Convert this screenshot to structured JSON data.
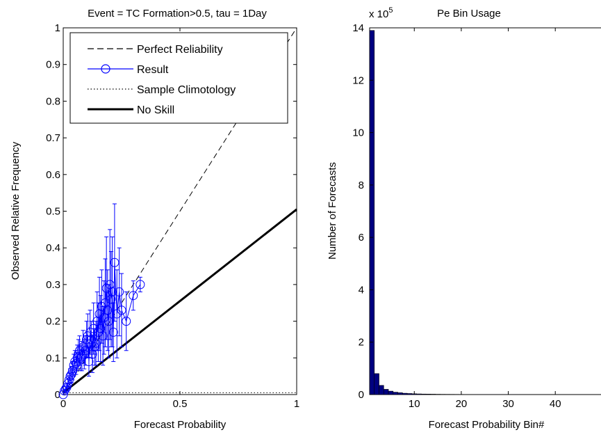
{
  "chart_data": [
    {
      "type": "scatter",
      "title": "Event = TC Formation>0.5,  tau = 1Day",
      "xlabel": "Forecast Probability",
      "ylabel": "Observed Relative Frequency",
      "xlim": [
        0,
        1
      ],
      "ylim": [
        0,
        1
      ],
      "x_ticks": [
        "0",
        "0.5",
        "1"
      ],
      "y_ticks": [
        "0",
        "0.1",
        "0.2",
        "0.3",
        "0.4",
        "0.5",
        "0.6",
        "0.7",
        "0.8",
        "0.9",
        "1"
      ],
      "legend_position": "top-left",
      "legend": [
        "Perfect Reliability",
        "Result",
        "Sample Climotology",
        "No Skill"
      ],
      "colors": {
        "result": "#0000ff",
        "no_skill": "#000000",
        "perfect": "#000000",
        "climatology": "#000000"
      },
      "perfect_reliability": [
        [
          0,
          0
        ],
        [
          1,
          1
        ]
      ],
      "no_skill": [
        [
          0,
          0.005
        ],
        [
          1,
          0.505
        ]
      ],
      "sample_climatology": 0.005,
      "series": [
        {
          "name": "Result",
          "x": [
            0.0,
            0.005,
            0.01,
            0.015,
            0.02,
            0.025,
            0.03,
            0.035,
            0.04,
            0.045,
            0.05,
            0.055,
            0.06,
            0.065,
            0.07,
            0.075,
            0.08,
            0.085,
            0.09,
            0.095,
            0.1,
            0.105,
            0.11,
            0.115,
            0.12,
            0.125,
            0.13,
            0.135,
            0.14,
            0.145,
            0.15,
            0.155,
            0.16,
            0.165,
            0.17,
            0.175,
            0.18,
            0.185,
            0.19,
            0.195,
            0.2,
            0.205,
            0.21,
            0.215,
            0.22,
            0.23,
            0.24,
            0.25,
            0.27,
            0.3,
            0.33
          ],
          "y": [
            0.0,
            0.01,
            0.015,
            0.02,
            0.03,
            0.04,
            0.05,
            0.055,
            0.065,
            0.08,
            0.09,
            0.085,
            0.1,
            0.11,
            0.12,
            0.1,
            0.105,
            0.13,
            0.11,
            0.12,
            0.15,
            0.16,
            0.09,
            0.17,
            0.15,
            0.11,
            0.18,
            0.13,
            0.14,
            0.2,
            0.17,
            0.22,
            0.18,
            0.24,
            0.16,
            0.21,
            0.25,
            0.29,
            0.23,
            0.2,
            0.3,
            0.26,
            0.28,
            0.17,
            0.36,
            0.22,
            0.28,
            0.23,
            0.2,
            0.27,
            0.3
          ],
          "error": [
            0.0,
            0.005,
            0.007,
            0.01,
            0.015,
            0.018,
            0.02,
            0.022,
            0.025,
            0.03,
            0.03,
            0.03,
            0.035,
            0.04,
            0.04,
            0.035,
            0.04,
            0.045,
            0.04,
            0.04,
            0.05,
            0.06,
            0.04,
            0.06,
            0.05,
            0.05,
            0.07,
            0.05,
            0.06,
            0.08,
            0.08,
            0.1,
            0.09,
            0.1,
            0.08,
            0.1,
            0.12,
            0.14,
            0.11,
            0.1,
            0.15,
            0.13,
            0.15,
            0.08,
            0.16,
            0.12,
            0.12,
            0.1,
            0.08,
            0.04,
            0.02
          ]
        }
      ]
    },
    {
      "type": "bar",
      "title": "Pe Bin Usage",
      "xlabel": "Forecast Probability Bin#",
      "ylabel": "Number of Forecasts",
      "y_multiplier": "x 10",
      "y_exponent": "5",
      "xlim": [
        0.5,
        51.5
      ],
      "ylim": [
        0,
        14
      ],
      "x_ticks": [
        "10",
        "20",
        "30",
        "40"
      ],
      "y_ticks": [
        "0",
        "2",
        "4",
        "6",
        "8",
        "10",
        "12",
        "14"
      ],
      "colors": {
        "bar": "#000080"
      },
      "categories": [
        1,
        2,
        3,
        4,
        5,
        6,
        7,
        8,
        9,
        10,
        11,
        12,
        13,
        14,
        15,
        16,
        17,
        18,
        19,
        20,
        21,
        22,
        23,
        24,
        25,
        26,
        27,
        28,
        29,
        30,
        31,
        32,
        33,
        34,
        35,
        36,
        37,
        38,
        39,
        40,
        41,
        42,
        43,
        44,
        45,
        46,
        47,
        48,
        49,
        50,
        51
      ],
      "values": [
        13.9,
        0.8,
        0.35,
        0.2,
        0.13,
        0.09,
        0.07,
        0.05,
        0.04,
        0.03,
        0.025,
        0.02,
        0.018,
        0.015,
        0.012,
        0.01,
        0.009,
        0.008,
        0.007,
        0.006,
        0.005,
        0.005,
        0.004,
        0.004,
        0.003,
        0.003,
        0.003,
        0.002,
        0.002,
        0.002,
        0.002,
        0.002,
        0.001,
        0.001,
        0.001,
        0.001,
        0.001,
        0.001,
        0.001,
        0.001,
        0.001,
        0.001,
        0.001,
        0.001,
        0.001,
        0.001,
        0.001,
        0.001,
        0.001,
        0.001,
        0.001
      ]
    }
  ]
}
